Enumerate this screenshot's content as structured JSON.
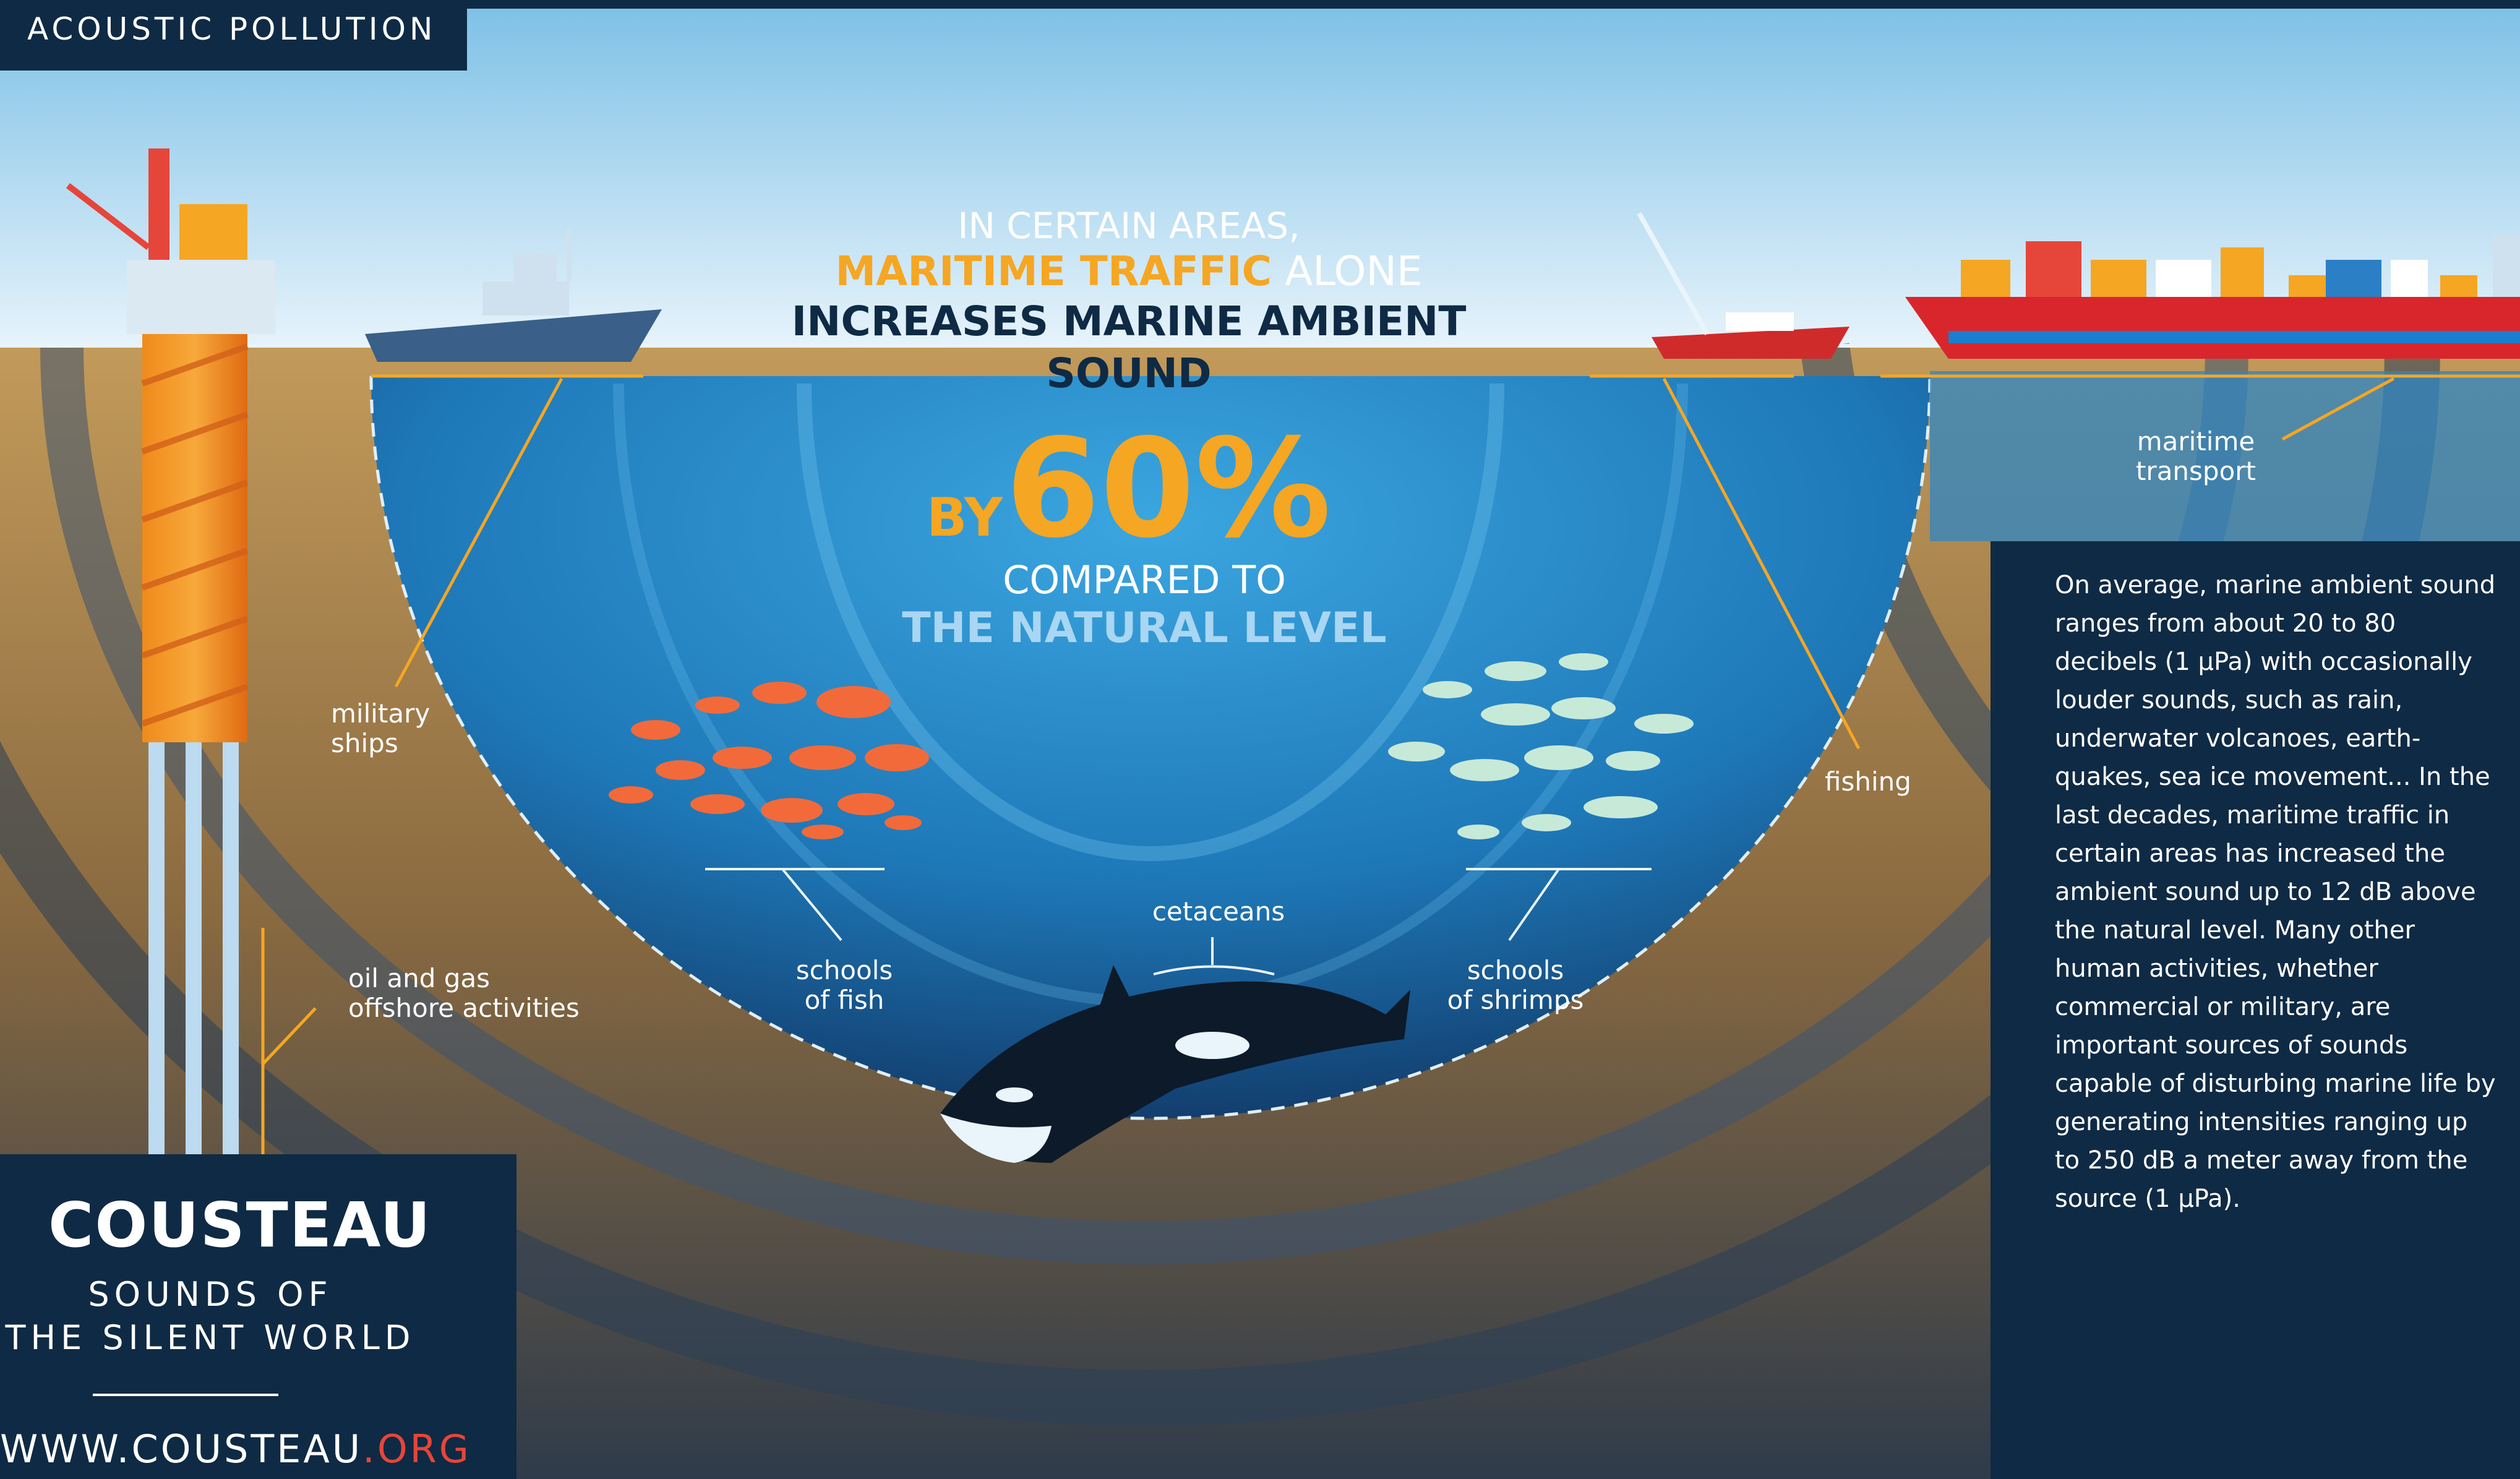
{
  "section_tag": "ACOUSTIC POLLUTION",
  "headline": {
    "line1": "IN CERTAIN AREAS,",
    "highlight": "MARITIME TRAFFIC",
    "line2_rest": "ALONE",
    "line3": "INCREASES MARINE AMBIENT SOUND"
  },
  "stat": {
    "prefix": "BY",
    "value": "60%",
    "line1": "COMPARED TO",
    "line2": "THE NATURAL LEVEL"
  },
  "labels": {
    "military_line1": "military",
    "military_line2": "ships",
    "oil_line1": "oil and gas",
    "oil_line2": "offshore activities",
    "fish_line1": "schools",
    "fish_line2": "of fish",
    "cetaceans": "cetaceans",
    "shrimp_line1": "schools",
    "shrimp_line2": "of shrimps",
    "fishing": "fishing",
    "maritime_line1": "maritime",
    "maritime_line2": "transport"
  },
  "info_text": "On average, marine ambient sound ranges from about 20 to 80 decibels (1 µPa) with occasionally louder sounds, such as rain, underwater volcanoes, earth-quakes, sea ice movement... In the last decades, maritime traffic in certain areas has increased the ambient sound up to 12 dB above the natural level. Many other human activities, whether commercial or military, are important sources of sounds capable of disturbing marine life by generating intensities ranging up to 250 dB a meter away from the source (1 µPa).",
  "brand": {
    "logo": "COUSTEAU",
    "tagline1": "SOUNDS OF",
    "tagline2": "THE SILENT WORLD",
    "url_main": "WWW.COUSTEAU",
    "url_tld": ".ORG"
  },
  "colors": {
    "navy": "#0f2a44",
    "accent_orange": "#f5a623",
    "light_blue_text": "#a9d6f2",
    "url_red": "#e6453a"
  }
}
